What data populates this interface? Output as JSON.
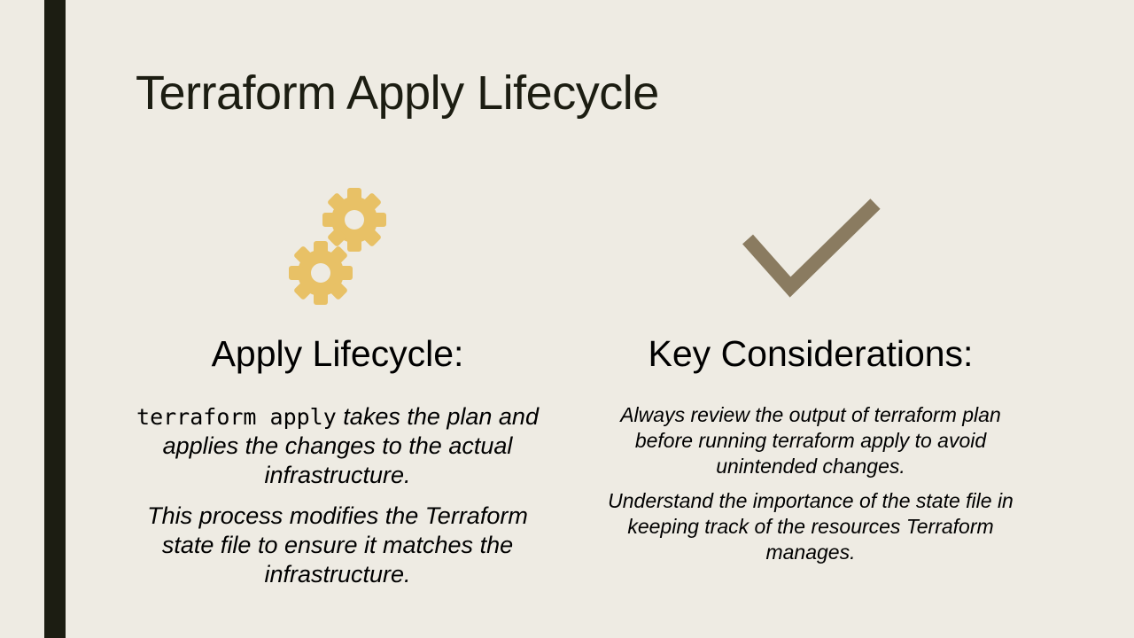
{
  "slide": {
    "title": "Terraform Apply Lifecycle"
  },
  "colors": {
    "accent_bar": "#1c1d12",
    "background": "#eeebe3",
    "gear_icon": "#e8c166",
    "check_icon": "#8a7b60"
  },
  "left_column": {
    "icon": "gears-icon",
    "heading": "Apply Lifecycle:",
    "para1_code": "terraform apply",
    "para1_text": " takes the plan and applies the changes to the actual infrastructure.",
    "para2": "This process modifies the Terraform state file to ensure it matches the infrastructure."
  },
  "right_column": {
    "icon": "checkmark-icon",
    "heading": "Key Considerations:",
    "para1": "Always review the output of terraform plan before running terraform apply to avoid unintended changes.",
    "para2": "Understand the importance of the state file in keeping track of the resources Terraform manages."
  }
}
